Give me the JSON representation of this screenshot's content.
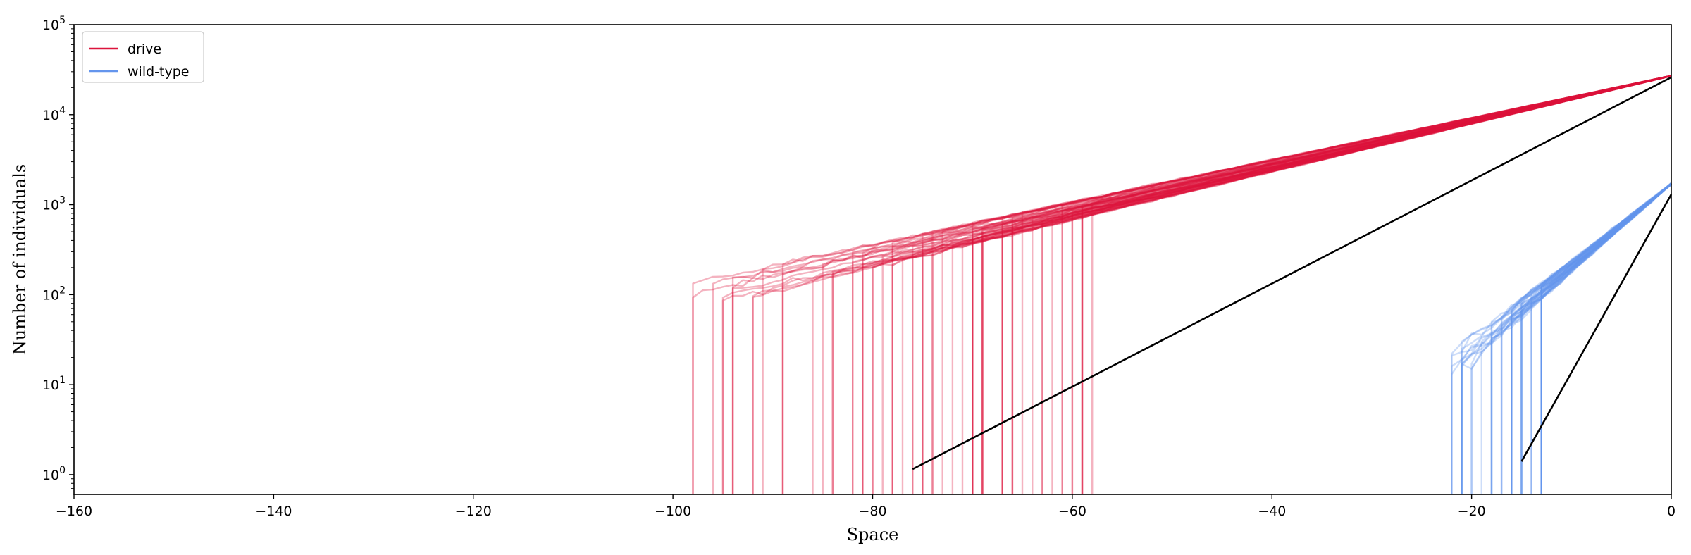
{
  "chart_data": {
    "type": "line",
    "title": "",
    "xlabel": "Space",
    "ylabel": "Number of individuals",
    "xlim": [
      -160,
      0
    ],
    "ylim_log10": [
      -0.22,
      5
    ],
    "yscale": "log",
    "grid": false,
    "legend_placement": "top-left",
    "x_ticks": [
      -160,
      -140,
      -120,
      -100,
      -80,
      -60,
      -40,
      -20,
      0
    ],
    "x_tick_labels": [
      "−160",
      "−140",
      "−120",
      "−100",
      "−80",
      "−60",
      "−40",
      "−20",
      "0"
    ],
    "y_ticks": [
      {
        "value": 1,
        "base": "10",
        "exp": "0"
      },
      {
        "value": 10,
        "base": "10",
        "exp": "1"
      },
      {
        "value": 100,
        "base": "10",
        "exp": "2"
      },
      {
        "value": 1000,
        "base": "10",
        "exp": "3"
      },
      {
        "value": 10000,
        "base": "10",
        "exp": "4"
      },
      {
        "value": 100000,
        "base": "10",
        "exp": "5"
      }
    ],
    "series": [
      {
        "name": "drive",
        "color": "#dc143c",
        "kind": "ensemble",
        "front_x": 0,
        "front_y": 27000,
        "decay_per_unit": 0.0575,
        "noise_floor_x": -100,
        "cutoff_x": -58
      },
      {
        "name": "wild-type",
        "color": "#6495ed",
        "kind": "ensemble",
        "front_x": 0,
        "front_y": 1700,
        "decay_per_unit": 0.21,
        "noise_floor_x": -24,
        "cutoff_x": -13
      }
    ],
    "fit_lines": [
      {
        "series": "drive",
        "x": [
          -76,
          0
        ],
        "y": [
          1.15,
          26000
        ],
        "color": "#000000"
      },
      {
        "series": "wild-type",
        "x": [
          -15,
          0
        ],
        "y": [
          1.4,
          1300
        ],
        "color": "#000000"
      }
    ]
  }
}
